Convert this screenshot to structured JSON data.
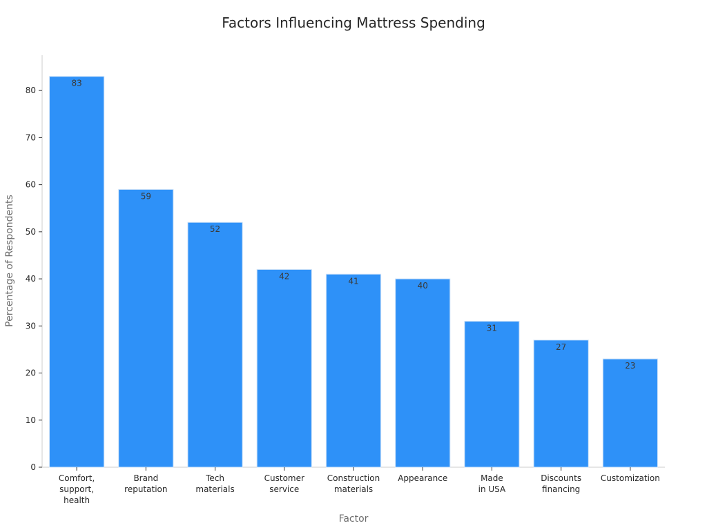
{
  "chart_data": {
    "type": "bar",
    "title": "Factors Influencing Mattress Spending",
    "xlabel": "Factor",
    "ylabel": "Percentage of Respondents",
    "categories": [
      [
        "Comfort,",
        "support,",
        "health"
      ],
      [
        "Brand",
        "reputation"
      ],
      [
        "Tech",
        "materials"
      ],
      [
        "Customer",
        "service"
      ],
      [
        "Construction",
        "materials"
      ],
      [
        "Appearance"
      ],
      [
        "Made",
        "in USA"
      ],
      [
        "Discounts",
        "financing"
      ],
      [
        "Customization"
      ]
    ],
    "values": [
      83,
      59,
      52,
      42,
      41,
      40,
      31,
      27,
      23
    ],
    "ylim": [
      0,
      87.5
    ],
    "yticks": [
      0,
      10,
      20,
      30,
      40,
      50,
      60,
      70,
      80
    ],
    "bar_color": "#2e91f8",
    "bar_edge_color": "#cfe3f8",
    "grid": false,
    "legend": "none"
  }
}
